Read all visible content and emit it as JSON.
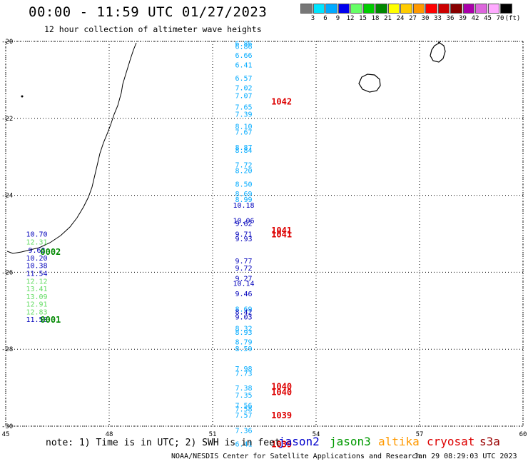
{
  "header": {
    "title": "00:00 - 11:59 UTC 01/27/2023",
    "subtitle": "12 hour collection of altimeter wave heights"
  },
  "legend": {
    "swatches": [
      {
        "color": "#777777",
        "label": "3"
      },
      {
        "color": "#00e5ff",
        "label": "6"
      },
      {
        "color": "#00aaff",
        "label": "9"
      },
      {
        "color": "#0000ee",
        "label": "12"
      },
      {
        "color": "#66ff66",
        "label": "15"
      },
      {
        "color": "#00cc00",
        "label": "18"
      },
      {
        "color": "#008800",
        "label": "21"
      },
      {
        "color": "#ffff00",
        "label": "24"
      },
      {
        "color": "#ffcc00",
        "label": "27"
      },
      {
        "color": "#ff9900",
        "label": "30"
      },
      {
        "color": "#ff0000",
        "label": "33"
      },
      {
        "color": "#cc0000",
        "label": "36"
      },
      {
        "color": "#880000",
        "label": "39"
      },
      {
        "color": "#aa00aa",
        "label": "42"
      },
      {
        "color": "#dd66dd",
        "label": "45"
      },
      {
        "color": "#ffaaff",
        "label": "70"
      },
      {
        "color": "#000000",
        "label": "(ft)"
      }
    ]
  },
  "map": {
    "lon_range": [
      45,
      60
    ],
    "lat_range": [
      -30,
      -20
    ],
    "lon_ticks": [
      "45",
      "48",
      "51",
      "54",
      "57",
      "60"
    ],
    "lat_ticks": [
      "-20",
      "-22",
      "-24",
      "-26",
      "-28",
      "-30"
    ],
    "grid": "dotted",
    "observations": [
      {
        "lat": -20.05,
        "lon": 51.9,
        "text": "6.86",
        "color": "#00aaff"
      },
      {
        "lat": -20.12,
        "lon": 51.9,
        "text": "6.86",
        "color": "#00aaff"
      },
      {
        "lat": -20.35,
        "lon": 51.9,
        "text": "6.66",
        "color": "#00aaff"
      },
      {
        "lat": -20.6,
        "lon": 51.9,
        "text": "6.41",
        "color": "#00aaff"
      },
      {
        "lat": -20.95,
        "lon": 51.9,
        "text": "6.57",
        "color": "#00aaff"
      },
      {
        "lat": -21.2,
        "lon": 51.9,
        "text": "7.02",
        "color": "#00aaff"
      },
      {
        "lat": -21.4,
        "lon": 51.9,
        "text": "7.07",
        "color": "#00aaff"
      },
      {
        "lat": -21.7,
        "lon": 51.9,
        "text": "7.65",
        "color": "#00aaff"
      },
      {
        "lat": -21.88,
        "lon": 51.9,
        "text": "7.39",
        "color": "#00aaff"
      },
      {
        "lat": -22.2,
        "lon": 51.9,
        "text": "8.10",
        "color": "#00aaff"
      },
      {
        "lat": -22.35,
        "lon": 51.9,
        "text": "7.67",
        "color": "#00aaff"
      },
      {
        "lat": -22.75,
        "lon": 51.9,
        "text": "8.87",
        "color": "#00aaff"
      },
      {
        "lat": -22.82,
        "lon": 51.9,
        "text": "8.84",
        "color": "#00aaff"
      },
      {
        "lat": -23.2,
        "lon": 51.9,
        "text": "7.72",
        "color": "#00aaff"
      },
      {
        "lat": -23.35,
        "lon": 51.9,
        "text": "8.20",
        "color": "#00aaff"
      },
      {
        "lat": -23.7,
        "lon": 51.9,
        "text": "8.50",
        "color": "#00aaff"
      },
      {
        "lat": -23.95,
        "lon": 51.9,
        "text": "8.69",
        "color": "#00aaff"
      },
      {
        "lat": -24.1,
        "lon": 51.9,
        "text": "8.99",
        "color": "#00aaff"
      },
      {
        "lat": -24.25,
        "lon": 51.9,
        "text": "10.18",
        "color": "#0000bb"
      },
      {
        "lat": -24.65,
        "lon": 51.9,
        "text": "10.06",
        "color": "#0000bb"
      },
      {
        "lat": -24.72,
        "lon": 51.9,
        "text": "9.62",
        "color": "#0000bb"
      },
      {
        "lat": -25.0,
        "lon": 51.9,
        "text": "9.71",
        "color": "#0000bb"
      },
      {
        "lat": -25.12,
        "lon": 51.9,
        "text": "9.93",
        "color": "#0000bb"
      },
      {
        "lat": -25.7,
        "lon": 51.9,
        "text": "9.77",
        "color": "#0000bb"
      },
      {
        "lat": -25.88,
        "lon": 51.9,
        "text": "9.72",
        "color": "#0000bb"
      },
      {
        "lat": -26.15,
        "lon": 51.9,
        "text": "9.27",
        "color": "#0000bb"
      },
      {
        "lat": -26.28,
        "lon": 51.9,
        "text": "10.14",
        "color": "#0000bb"
      },
      {
        "lat": -26.55,
        "lon": 51.9,
        "text": "9.46",
        "color": "#0000bb"
      },
      {
        "lat": -26.95,
        "lon": 51.9,
        "text": "8.69",
        "color": "#00aaff"
      },
      {
        "lat": -27.02,
        "lon": 51.9,
        "text": "8.42",
        "color": "#0000bb"
      },
      {
        "lat": -27.15,
        "lon": 51.9,
        "text": "9.03",
        "color": "#0000bb"
      },
      {
        "lat": -27.45,
        "lon": 51.9,
        "text": "8.32",
        "color": "#00aaff"
      },
      {
        "lat": -27.55,
        "lon": 51.9,
        "text": "8.93",
        "color": "#00aaff"
      },
      {
        "lat": -27.8,
        "lon": 51.9,
        "text": "8.79",
        "color": "#00aaff"
      },
      {
        "lat": -27.98,
        "lon": 51.9,
        "text": "8.59",
        "color": "#00aaff"
      },
      {
        "lat": -28.5,
        "lon": 51.9,
        "text": "7.98",
        "color": "#00aaff"
      },
      {
        "lat": -28.62,
        "lon": 51.9,
        "text": "7.73",
        "color": "#00aaff"
      },
      {
        "lat": -29.0,
        "lon": 51.9,
        "text": "7.38",
        "color": "#00aaff"
      },
      {
        "lat": -29.18,
        "lon": 51.9,
        "text": "7.35",
        "color": "#00aaff"
      },
      {
        "lat": -29.45,
        "lon": 51.9,
        "text": "7.56",
        "color": "#00aaff"
      },
      {
        "lat": -29.55,
        "lon": 51.9,
        "text": "7.58",
        "color": "#00aaff"
      },
      {
        "lat": -29.7,
        "lon": 51.9,
        "text": "7.57",
        "color": "#00aaff"
      },
      {
        "lat": -30.1,
        "lon": 51.9,
        "text": "7.36",
        "color": "#00aaff"
      },
      {
        "lat": -30.45,
        "lon": 51.9,
        "text": "6.41",
        "color": "#00aaff"
      },
      {
        "lat": -25.0,
        "lon": 45.9,
        "text": "10.70",
        "color": "#0000bb"
      },
      {
        "lat": -25.2,
        "lon": 45.9,
        "text": "12.31",
        "color": "#66dd66"
      },
      {
        "lat": -25.42,
        "lon": 45.9,
        "text": "9.63",
        "color": "#0000bb"
      },
      {
        "lat": -25.62,
        "lon": 45.9,
        "text": "10.20",
        "color": "#0000bb"
      },
      {
        "lat": -25.82,
        "lon": 45.9,
        "text": "10.38",
        "color": "#0000bb"
      },
      {
        "lat": -26.02,
        "lon": 45.9,
        "text": "11.54",
        "color": "#0000bb"
      },
      {
        "lat": -26.22,
        "lon": 45.9,
        "text": "12.12",
        "color": "#66dd66"
      },
      {
        "lat": -26.42,
        "lon": 45.9,
        "text": "13.41",
        "color": "#66dd66"
      },
      {
        "lat": -26.62,
        "lon": 45.9,
        "text": "13.09",
        "color": "#66dd66"
      },
      {
        "lat": -26.82,
        "lon": 45.9,
        "text": "12.91",
        "color": "#66dd66"
      },
      {
        "lat": -27.02,
        "lon": 45.9,
        "text": "12.83",
        "color": "#66dd66"
      },
      {
        "lat": -27.22,
        "lon": 45.9,
        "text": "11.50",
        "color": "#0000bb"
      }
    ],
    "pass_labels": [
      {
        "lat": -21.55,
        "lon": 53.0,
        "text": "1042",
        "color": "#dd0000"
      },
      {
        "lat": -24.9,
        "lon": 53.0,
        "text": "1041",
        "color": "#dd0000"
      },
      {
        "lat": -25.0,
        "lon": 53.0,
        "text": "1041",
        "color": "#dd0000"
      },
      {
        "lat": -28.95,
        "lon": 53.0,
        "text": "1040",
        "color": "#dd0000"
      },
      {
        "lat": -29.1,
        "lon": 53.0,
        "text": "1040",
        "color": "#dd0000"
      },
      {
        "lat": -29.7,
        "lon": 53.0,
        "text": "1039",
        "color": "#dd0000"
      },
      {
        "lat": -30.45,
        "lon": 53.0,
        "text": "1039",
        "color": "#dd0000"
      },
      {
        "lat": -25.45,
        "lon": 46.3,
        "text": "0002",
        "color": "#008800"
      },
      {
        "lat": -27.22,
        "lon": 46.3,
        "text": "0001",
        "color": "#008800"
      }
    ]
  },
  "footer": {
    "note": "note: 1) Time is in UTC; 2) SWH is in feet",
    "satellites": [
      {
        "name": "jason2",
        "color": "#0000cc"
      },
      {
        "name": "jason3",
        "color": "#009900"
      },
      {
        "name": "altika",
        "color": "#ff9900"
      },
      {
        "name": "cryosat",
        "color": "#dd0000"
      },
      {
        "name": "s3a",
        "color": "#990000"
      }
    ],
    "org": "NOAA/NESDIS Center for Satellite Applications and Research",
    "timestamp": "Jan 29 08:29:03 UTC 2023"
  }
}
